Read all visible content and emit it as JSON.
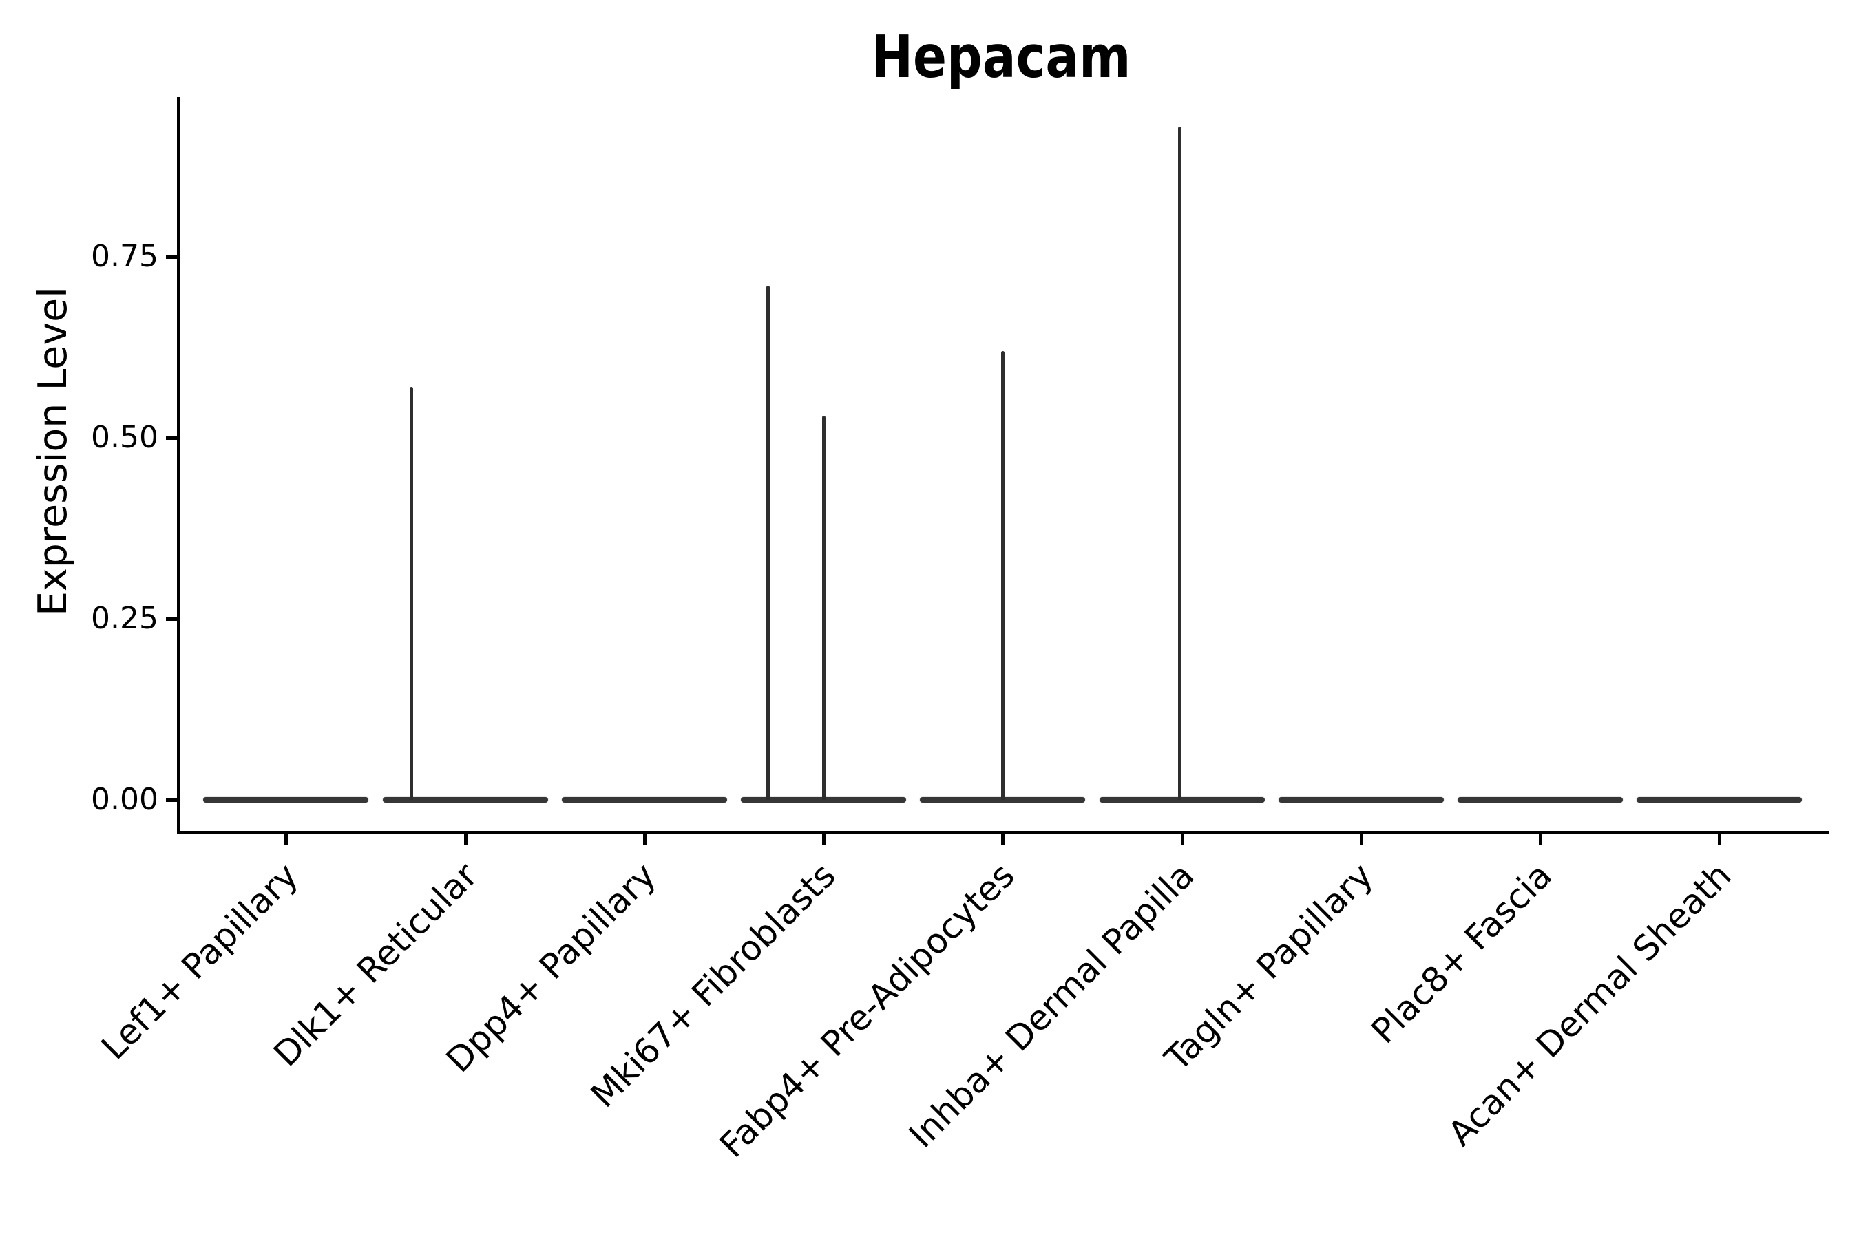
{
  "chart_data": {
    "type": "violin",
    "title": "Hepacam",
    "xlabel": "",
    "ylabel": "Expression Level",
    "ylim": [
      0,
      0.97
    ],
    "grid": false,
    "legend": null,
    "background_color": "#ffffff",
    "colors": {
      "axis": "#000000",
      "text": "#000000",
      "violin_fill": "#363636",
      "spike_line": "#2e2e2e"
    },
    "y_axis": {
      "label": "Expression Level",
      "ticks": [
        {
          "label": "0.00",
          "value": 0.0
        },
        {
          "label": "0.25",
          "value": 0.25
        },
        {
          "label": "0.50",
          "value": 0.5
        },
        {
          "label": "0.75",
          "value": 0.75
        }
      ]
    },
    "categories": [
      "Lef1+ Papillary",
      "Dlk1+ Reticular",
      "Dpp4+ Papillary",
      "Mki67+ Fibroblasts",
      "Fabp4+ Pre-Adipocytes",
      "Inhba+ Dermal Papilla",
      "Tagln+ Papillary",
      "Plac8+ Fascia",
      "Acan+ Dermal Sheath"
    ],
    "violins": [
      {
        "label": "Lef1+ Papillary",
        "body_value": 0.0,
        "spikes": []
      },
      {
        "label": "Dlk1+ Reticular",
        "body_value": 0.0,
        "spikes": [
          {
            "value": 0.57,
            "x_offset_frac": -0.3
          }
        ]
      },
      {
        "label": "Dpp4+ Papillary",
        "body_value": 0.0,
        "spikes": []
      },
      {
        "label": "Mki67+ Fibroblasts",
        "body_value": 0.0,
        "spikes": [
          {
            "value": 0.71,
            "x_offset_frac": -0.31
          },
          {
            "value": 0.53,
            "x_offset_frac": 0.0
          }
        ]
      },
      {
        "label": "Fabp4+ Pre-Adipocytes",
        "body_value": 0.0,
        "spikes": [
          {
            "value": 0.62,
            "x_offset_frac": 0.0
          }
        ]
      },
      {
        "label": "Inhba+ Dermal Papilla",
        "body_value": 0.0,
        "spikes": [
          {
            "value": 0.93,
            "x_offset_frac": -0.01
          }
        ]
      },
      {
        "label": "Tagln+ Papillary",
        "body_value": 0.0,
        "spikes": []
      },
      {
        "label": "Plac8+ Fascia",
        "body_value": 0.0,
        "spikes": []
      },
      {
        "label": "Acan+ Dermal Sheath",
        "body_value": 0.0,
        "spikes": []
      }
    ]
  }
}
